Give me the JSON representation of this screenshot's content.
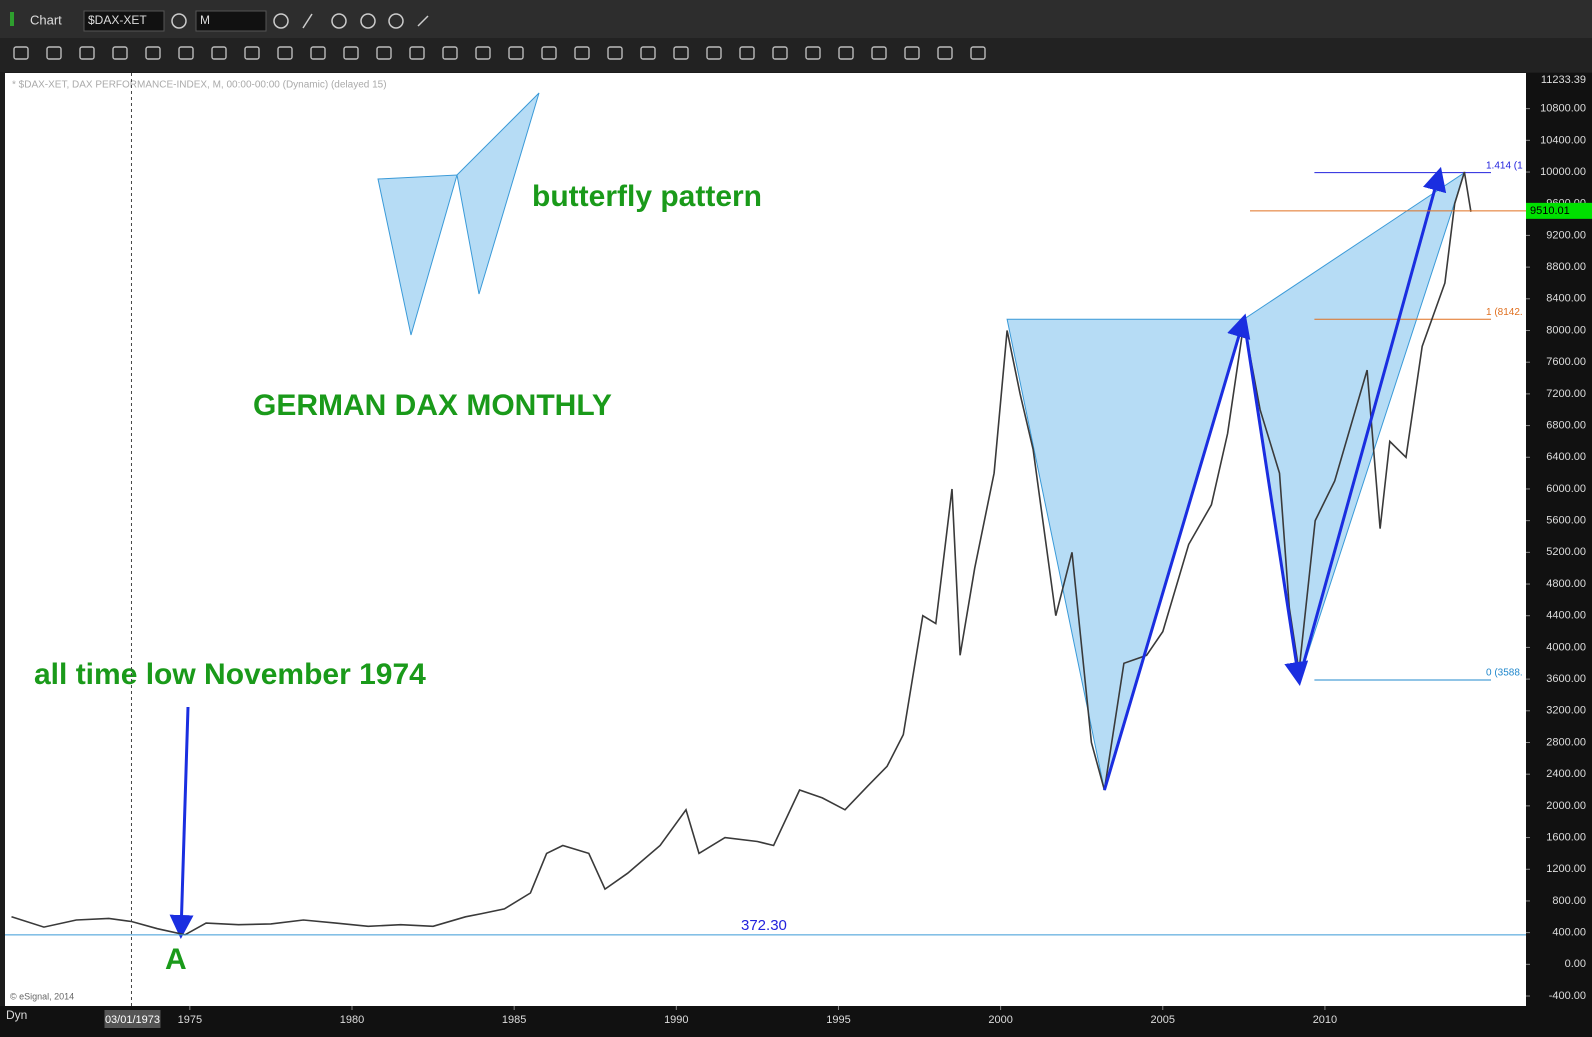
{
  "ui": {
    "window_title": "Chart",
    "symbol": "$DAX-XET",
    "interval": "M",
    "mode": "Dyn"
  },
  "chart_data": {
    "type": "line",
    "header": "* $DAX-XET, DAX PERFORMANCE-INDEX, M, 00:00-00:00 (Dynamic) (delayed 15)",
    "copyright": "© eSignal, 2014",
    "annotations": [
      "butterfly pattern",
      "GERMAN DAX MONTHLY",
      "all time low November 1974",
      "A"
    ],
    "cursor_date": {
      "value": 1973.2,
      "label": "03/01/1973"
    },
    "top_price": {
      "value": 11233.39,
      "label": "11233.39"
    },
    "last_price": {
      "value": 9510.01,
      "label": "9510.01"
    },
    "low_line": {
      "value": 372.3,
      "label": "372.30"
    },
    "fib_levels": [
      {
        "value": 9992,
        "label": "1.414 (1",
        "color": "#2222dd"
      },
      {
        "value": 8142,
        "label": "1 (8142.",
        "color": "#e07020"
      },
      {
        "value": 3588,
        "label": "0 (3588.",
        "color": "#2288cc"
      }
    ],
    "pattern": {
      "x": [
        2000.2,
        2003.2,
        2007.5,
        2009.2,
        2014.3
      ],
      "values": [
        8142,
        2200,
        8142,
        3588,
        9992
      ]
    },
    "xlim": [
      1969.3,
      2016.2
    ],
    "xticks": [
      1975,
      1980,
      1985,
      1990,
      1995,
      2000,
      2005,
      2010
    ],
    "ylim": [
      -526,
      11250
    ],
    "yticks": [
      {
        "value": -400,
        "label": "-400.00"
      },
      {
        "value": 0,
        "label": "0.00"
      },
      {
        "value": 400,
        "label": "400.00"
      },
      {
        "value": 800,
        "label": "800.00"
      },
      {
        "value": 1200,
        "label": "1200.00"
      },
      {
        "value": 1600,
        "label": "1600.00"
      },
      {
        "value": 2000,
        "label": "2000.00"
      },
      {
        "value": 2400,
        "label": "2400.00"
      },
      {
        "value": 2800,
        "label": "2800.00"
      },
      {
        "value": 3200,
        "label": "3200.00"
      },
      {
        "value": 3600,
        "label": "3600.00"
      },
      {
        "value": 4000,
        "label": "4000.00"
      },
      {
        "value": 4400,
        "label": "4400.00"
      },
      {
        "value": 4800,
        "label": "4800.00"
      },
      {
        "value": 5200,
        "label": "5200.00"
      },
      {
        "value": 5600,
        "label": "5600.00"
      },
      {
        "value": 6000,
        "label": "6000.00"
      },
      {
        "value": 6400,
        "label": "6400.00"
      },
      {
        "value": 6800,
        "label": "6800.00"
      },
      {
        "value": 7200,
        "label": "7200.00"
      },
      {
        "value": 7600,
        "label": "7600.00"
      },
      {
        "value": 8000,
        "label": "8000.00"
      },
      {
        "value": 8400,
        "label": "8400.00"
      },
      {
        "value": 8800,
        "label": "8800.00"
      },
      {
        "value": 9200,
        "label": "9200.00"
      },
      {
        "value": 9600,
        "label": "9600.00"
      },
      {
        "value": 10000,
        "label": "10000.00"
      },
      {
        "value": 10400,
        "label": "10400.00"
      },
      {
        "value": 10800,
        "label": "10800.00"
      }
    ],
    "series": [
      {
        "color": "#3a3a3a",
        "x": [
          1969.5,
          1970.5,
          1971.5,
          1972.5,
          1973.2,
          1974.0,
          1974.85,
          1975.5,
          1976.5,
          1977.5,
          1978.5,
          1979.5,
          1980.5,
          1981.5,
          1982.5,
          1983.5,
          1984.0,
          1984.7,
          1985.5,
          1986.0,
          1986.5,
          1987.3,
          1987.8,
          1988.5,
          1989.5,
          1990.3,
          1990.7,
          1991.5,
          1992.5,
          1993.0,
          1993.8,
          1994.5,
          1995.2,
          1995.9,
          1996.5,
          1997.0,
          1997.6,
          1998.0,
          1998.5,
          1998.75,
          1999.2,
          1999.8,
          2000.2,
          2000.6,
          2001.0,
          2001.7,
          2002.2,
          2002.8,
          2003.2,
          2003.8,
          2004.5,
          2005.0,
          2005.8,
          2006.5,
          2007.0,
          2007.5,
          2008.0,
          2008.6,
          2008.9,
          2009.2,
          2009.7,
          2010.3,
          2011.3,
          2011.7,
          2012.0,
          2012.5,
          2013.0,
          2013.7,
          2014.0,
          2014.3,
          2014.5
        ],
        "values": [
          600,
          470,
          560,
          580,
          540,
          450,
          372.3,
          520,
          500,
          510,
          560,
          520,
          480,
          500,
          480,
          600,
          640,
          700,
          900,
          1400,
          1500,
          1400,
          950,
          1150,
          1500,
          1950,
          1400,
          1600,
          1550,
          1500,
          2200,
          2100,
          1950,
          2250,
          2500,
          2900,
          4400,
          4300,
          6000,
          3900,
          5000,
          6200,
          8000,
          7200,
          6500,
          4400,
          5200,
          2800,
          2200,
          3800,
          3900,
          4200,
          5300,
          5800,
          6700,
          8100,
          7000,
          6200,
          4500,
          3700,
          5600,
          6100,
          7500,
          5500,
          6600,
          6400,
          7800,
          8600,
          9600,
          10000,
          9500
        ]
      }
    ]
  }
}
